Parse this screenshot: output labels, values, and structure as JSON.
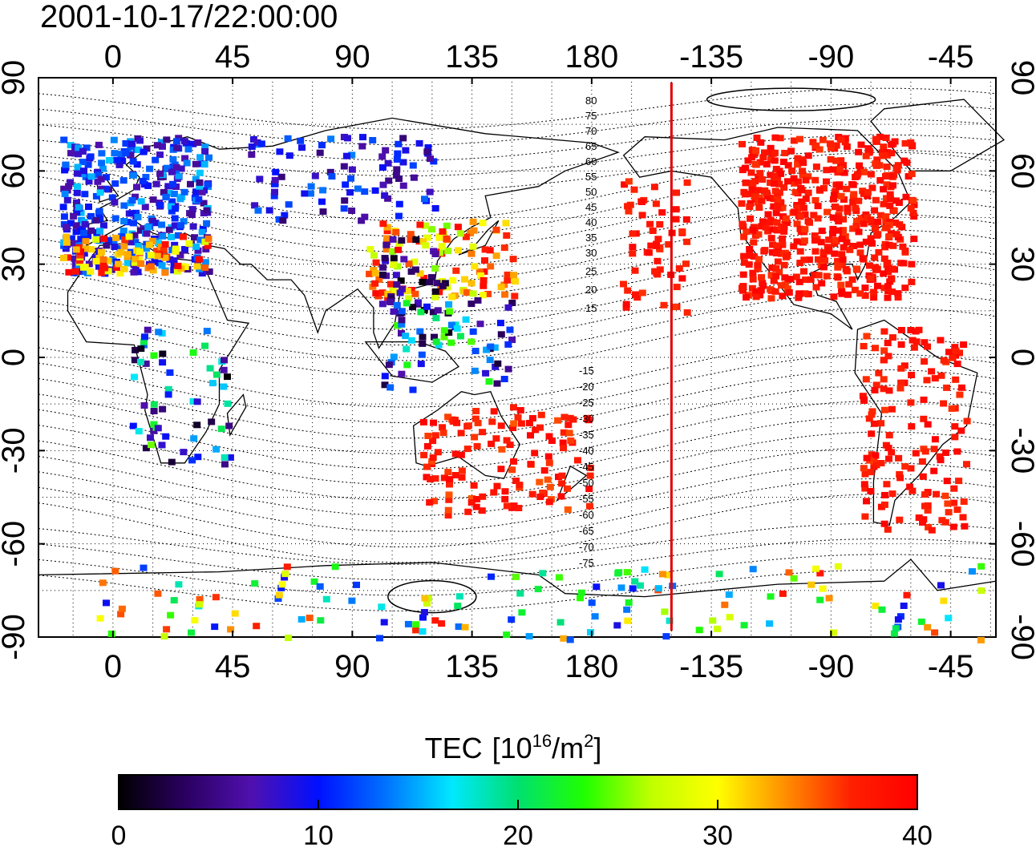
{
  "timestamp": "2001-10-17/22:00:00",
  "map": {
    "lon_ticks": [
      {
        "lon": 0,
        "label": "0"
      },
      {
        "lon": 45,
        "label": "45"
      },
      {
        "lon": 90,
        "label": "90"
      },
      {
        "lon": 135,
        "label": "135"
      },
      {
        "lon": 180,
        "label": "180"
      },
      {
        "lon": 225,
        "label": "-135"
      },
      {
        "lon": 270,
        "label": "-90"
      },
      {
        "lon": 315,
        "label": "-45"
      }
    ],
    "lat_ticks": [
      {
        "lat": 90,
        "label": "90"
      },
      {
        "lat": 60,
        "label": "60"
      },
      {
        "lat": 30,
        "label": "30"
      },
      {
        "lat": 0,
        "label": "0"
      },
      {
        "lat": -30,
        "label": "-30"
      },
      {
        "lat": -60,
        "label": "-60"
      },
      {
        "lat": -90,
        "label": "-90"
      }
    ],
    "contour_labels_north": [
      "80",
      "75",
      "70",
      "65",
      "60",
      "55",
      "50",
      "45",
      "40",
      "35",
      "30",
      "25",
      "20",
      "15"
    ],
    "contour_labels_south": [
      "-15",
      "-20",
      "-25",
      "-30",
      "-35",
      "-40",
      "-45",
      "-50",
      "-55",
      "-60",
      "-65",
      "-70",
      "-75"
    ],
    "terminator_lon": 210,
    "colors": {
      "terminator": "#e00000",
      "grid": "#000000"
    }
  },
  "colorbar": {
    "title": "TEC",
    "unit_base": "[10",
    "unit_exp": "16",
    "unit_mid": "/m",
    "unit_exp2": "2",
    "unit_close": "]",
    "min": 0,
    "max": 40,
    "ticks": [
      "0",
      "10",
      "20",
      "30",
      "40"
    ],
    "stops": [
      "#000000",
      "#2a0060",
      "#5010b0",
      "#0010ff",
      "#0070ff",
      "#00e8ff",
      "#00e070",
      "#20ff00",
      "#c0ff00",
      "#ffff00",
      "#ff9000",
      "#ff2000",
      "#ff0000"
    ]
  }
}
